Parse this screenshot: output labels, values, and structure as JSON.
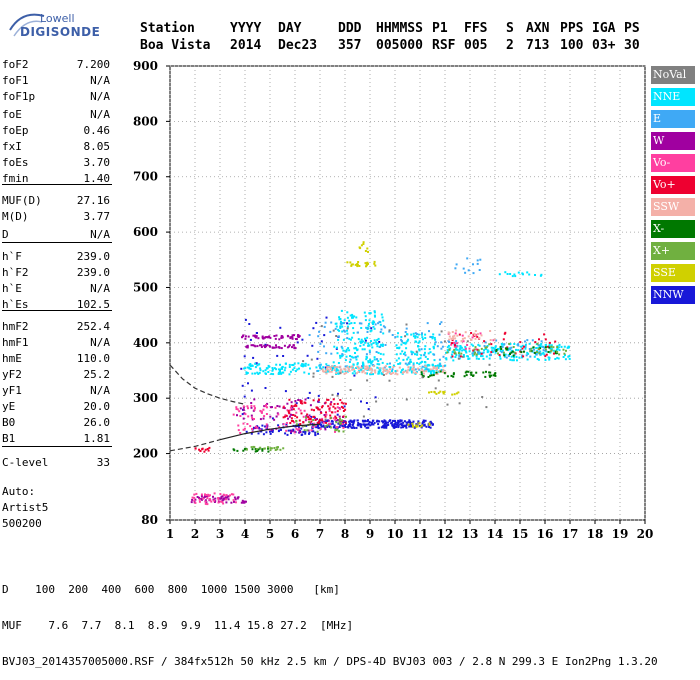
{
  "logo": {
    "top": "Lowell",
    "bottom": "DIGISONDE"
  },
  "header": {
    "labels": [
      "Station",
      "YYYY",
      "DAY",
      "DDD",
      "HHMMSS",
      "P1",
      "FFS",
      "S",
      "AXN",
      "PPS",
      "IGA",
      "PS"
    ],
    "values": [
      "Boa Vista",
      "2014",
      "Dec23",
      "357",
      "005000",
      "RSF",
      "005",
      "2",
      "713",
      "100",
      "03+",
      "30"
    ]
  },
  "parameters": [
    {
      "name": "foF2",
      "value": "7.200"
    },
    {
      "name": "foF1",
      "value": "N/A"
    },
    {
      "name": "foF1p",
      "value": "N/A"
    },
    {
      "name": "foE",
      "value": "N/A"
    },
    {
      "name": "foEp",
      "value": "0.46"
    },
    {
      "name": "fxI",
      "value": "8.05"
    },
    {
      "name": "foEs",
      "value": "3.70"
    },
    {
      "name": "fmin",
      "value": "1.40"
    },
    {
      "name": "MUF(D)",
      "value": "27.16"
    },
    {
      "name": "M(D)",
      "value": "3.77"
    },
    {
      "name": "D",
      "value": "N/A"
    },
    {
      "name": "h`F",
      "value": "239.0"
    },
    {
      "name": "h`F2",
      "value": "239.0"
    },
    {
      "name": "h`E",
      "value": "N/A"
    },
    {
      "name": "h`Es",
      "value": "102.5"
    },
    {
      "name": "hmF2",
      "value": "252.4"
    },
    {
      "name": "hmF1",
      "value": "N/A"
    },
    {
      "name": "hmE",
      "value": "110.0"
    },
    {
      "name": "yF2",
      "value": "25.2"
    },
    {
      "name": "yF1",
      "value": "N/A"
    },
    {
      "name": "yE",
      "value": "20.0"
    },
    {
      "name": "B0",
      "value": "26.0"
    },
    {
      "name": "B1",
      "value": "1.81"
    },
    {
      "name": "C-level",
      "value": "33"
    }
  ],
  "auto": {
    "line1": "Auto:",
    "line2": "Artist5",
    "line3": "500200"
  },
  "legend": [
    {
      "label": "NoVal",
      "color": "#808080"
    },
    {
      "label": "NNE",
      "color": "#00e5ff"
    },
    {
      "label": "E",
      "color": "#3fa9f5"
    },
    {
      "label": "W",
      "color": "#a000a0"
    },
    {
      "label": "Vo-",
      "color": "#ff3fa0"
    },
    {
      "label": "Vo+",
      "color": "#ee0030"
    },
    {
      "label": "SSW",
      "color": "#f4b0a8"
    },
    {
      "label": "X-",
      "color": "#007800"
    },
    {
      "label": "X+",
      "color": "#70b040"
    },
    {
      "label": "SSE",
      "color": "#d0d000"
    },
    {
      "label": "NNW",
      "color": "#1818d8"
    }
  ],
  "footer": {
    "d_label": "D",
    "d_values": [
      "100",
      "200",
      "400",
      "600",
      "800",
      "1000",
      "1500",
      "3000",
      "[km]"
    ],
    "muf_label": "MUF",
    "muf_values": [
      "7.6",
      "7.7",
      "8.1",
      "8.9",
      "9.9",
      "11.4",
      "15.8",
      "27.2",
      "[MHz]"
    ],
    "file_line": "BVJ03_2014357005000.RSF / 384fx512h 50 kHz 2.5 km / DPS-4D BVJ03 003 / 2.8 N 299.3 E Ion2Png 1.3.20"
  },
  "chart_data": {
    "type": "scatter",
    "title": "",
    "xlabel": "",
    "ylabel": "",
    "xlim": [
      1,
      20
    ],
    "ylim": [
      80,
      900
    ],
    "x_ticks": [
      1,
      2,
      3,
      4,
      5,
      6,
      7,
      8,
      9,
      10,
      11,
      12,
      13,
      14,
      15,
      16,
      17,
      18,
      19,
      20
    ],
    "y_ticks": [
      80,
      200,
      300,
      400,
      500,
      600,
      700,
      800,
      900
    ],
    "y_tick_labels": [
      "80",
      "200",
      "300",
      "400",
      "500",
      "600",
      "700",
      "800",
      "900"
    ],
    "grid": true,
    "legend_position": "right",
    "profile_curve": [
      [
        1.0,
        360
      ],
      [
        1.5,
        335
      ],
      [
        2.0,
        318
      ],
      [
        2.5,
        308
      ],
      [
        3.0,
        300
      ],
      [
        3.5,
        294
      ],
      [
        4.0,
        289
      ]
    ],
    "trace_curve": [
      [
        1.0,
        205
      ],
      [
        2.0,
        213
      ],
      [
        3.0,
        225
      ],
      [
        4.0,
        236
      ],
      [
        5.0,
        244
      ],
      [
        6.0,
        250
      ],
      [
        7.0,
        253
      ]
    ],
    "series": [
      {
        "name": "NNW",
        "color_key": 10,
        "clusters": [
          {
            "x": [
              6.8,
              11.5
            ],
            "y": [
              248,
              262
            ],
            "n": 260
          },
          {
            "x": [
              4.0,
              7.0
            ],
            "y": [
              235,
              255
            ],
            "n": 80
          },
          {
            "x": [
              3.8,
              9.5
            ],
            "y": [
              260,
              460
            ],
            "n": 60
          }
        ]
      },
      {
        "name": "NNE",
        "color_key": 1,
        "clusters": [
          {
            "x": [
              3.9,
              12.0
            ],
            "y": [
              345,
              365
            ],
            "n": 260
          },
          {
            "x": [
              7.5,
              9.5
            ],
            "y": [
              365,
              460
            ],
            "n": 160
          },
          {
            "x": [
              10.0,
              11.6
            ],
            "y": [
              365,
              420
            ],
            "n": 90
          },
          {
            "x": [
              12.0,
              17.0
            ],
            "y": [
              370,
              400
            ],
            "n": 200
          },
          {
            "x": [
              14.0,
              16.0
            ],
            "y": [
              522,
              530
            ],
            "n": 15
          }
        ]
      },
      {
        "name": "E",
        "color_key": 2,
        "clusters": [
          {
            "x": [
              6.5,
              12.0
            ],
            "y": [
              350,
              440
            ],
            "n": 90
          },
          {
            "x": [
              12.0,
              16.0
            ],
            "y": [
              375,
              410
            ],
            "n": 50
          },
          {
            "x": [
              12.3,
              13.5
            ],
            "y": [
              525,
              555
            ],
            "n": 12
          }
        ]
      },
      {
        "name": "W",
        "color_key": 3,
        "clusters": [
          {
            "x": [
              3.8,
              6.2
            ],
            "y": [
              408,
              416
            ],
            "n": 50
          },
          {
            "x": [
              4.0,
              6.0
            ],
            "y": [
              392,
              398
            ],
            "n": 40
          },
          {
            "x": [
              1.8,
              4.0
            ],
            "y": [
              113,
              125
            ],
            "n": 60
          },
          {
            "x": [
              3.5,
              8.0
            ],
            "y": [
              240,
              300
            ],
            "n": 70
          }
        ]
      },
      {
        "name": "Vo-",
        "color_key": 4,
        "clusters": [
          {
            "x": [
              3.5,
              8.0
            ],
            "y": [
              238,
              290
            ],
            "n": 90
          },
          {
            "x": [
              12.0,
              14.0
            ],
            "y": [
              390,
              420
            ],
            "n": 20
          },
          {
            "x": [
              1.8,
              3.6
            ],
            "y": [
              110,
              130
            ],
            "n": 40
          }
        ]
      },
      {
        "name": "Vo+",
        "color_key": 5,
        "clusters": [
          {
            "x": [
              5.5,
              8.0
            ],
            "y": [
              255,
              300
            ],
            "n": 90
          },
          {
            "x": [
              12.0,
              16.5
            ],
            "y": [
              375,
              420
            ],
            "n": 40
          },
          {
            "x": [
              1.9,
              2.6
            ],
            "y": [
              205,
              212
            ],
            "n": 12
          }
        ]
      },
      {
        "name": "SSW",
        "color_key": 6,
        "clusters": [
          {
            "x": [
              7.0,
              12.0
            ],
            "y": [
              345,
              360
            ],
            "n": 120
          },
          {
            "x": [
              12.0,
              14.0
            ],
            "y": [
              405,
              425
            ],
            "n": 30
          }
        ]
      },
      {
        "name": "X-",
        "color_key": 7,
        "clusters": [
          {
            "x": [
              11.0,
              14.0
            ],
            "y": [
              340,
              350
            ],
            "n": 40
          },
          {
            "x": [
              3.5,
              5.0
            ],
            "y": [
              205,
              212
            ],
            "n": 20
          },
          {
            "x": [
              14.0,
              16.5
            ],
            "y": [
              378,
              395
            ],
            "n": 25
          }
        ]
      },
      {
        "name": "X+",
        "color_key": 8,
        "clusters": [
          {
            "x": [
              4.0,
              5.5
            ],
            "y": [
              208,
              214
            ],
            "n": 20
          },
          {
            "x": [
              12.0,
              17.0
            ],
            "y": [
              380,
              400
            ],
            "n": 40
          },
          {
            "x": [
              6.0,
              8.0
            ],
            "y": [
              240,
              270
            ],
            "n": 30
          }
        ]
      },
      {
        "name": "SSE",
        "color_key": 9,
        "clusters": [
          {
            "x": [
              8.0,
              9.2
            ],
            "y": [
              540,
              548
            ],
            "n": 20
          },
          {
            "x": [
              11.3,
              12.5
            ],
            "y": [
              308,
              316
            ],
            "n": 15
          },
          {
            "x": [
              10.5,
              11.5
            ],
            "y": [
              250,
              258
            ],
            "n": 12
          },
          {
            "x": [
              8.5,
              9.0
            ],
            "y": [
              560,
              585
            ],
            "n": 8
          }
        ]
      },
      {
        "name": "NoVal",
        "color_key": 0,
        "clusters": [
          {
            "x": [
              6.0,
              14.0
            ],
            "y": [
              250,
              450
            ],
            "n": 40
          }
        ]
      }
    ]
  }
}
